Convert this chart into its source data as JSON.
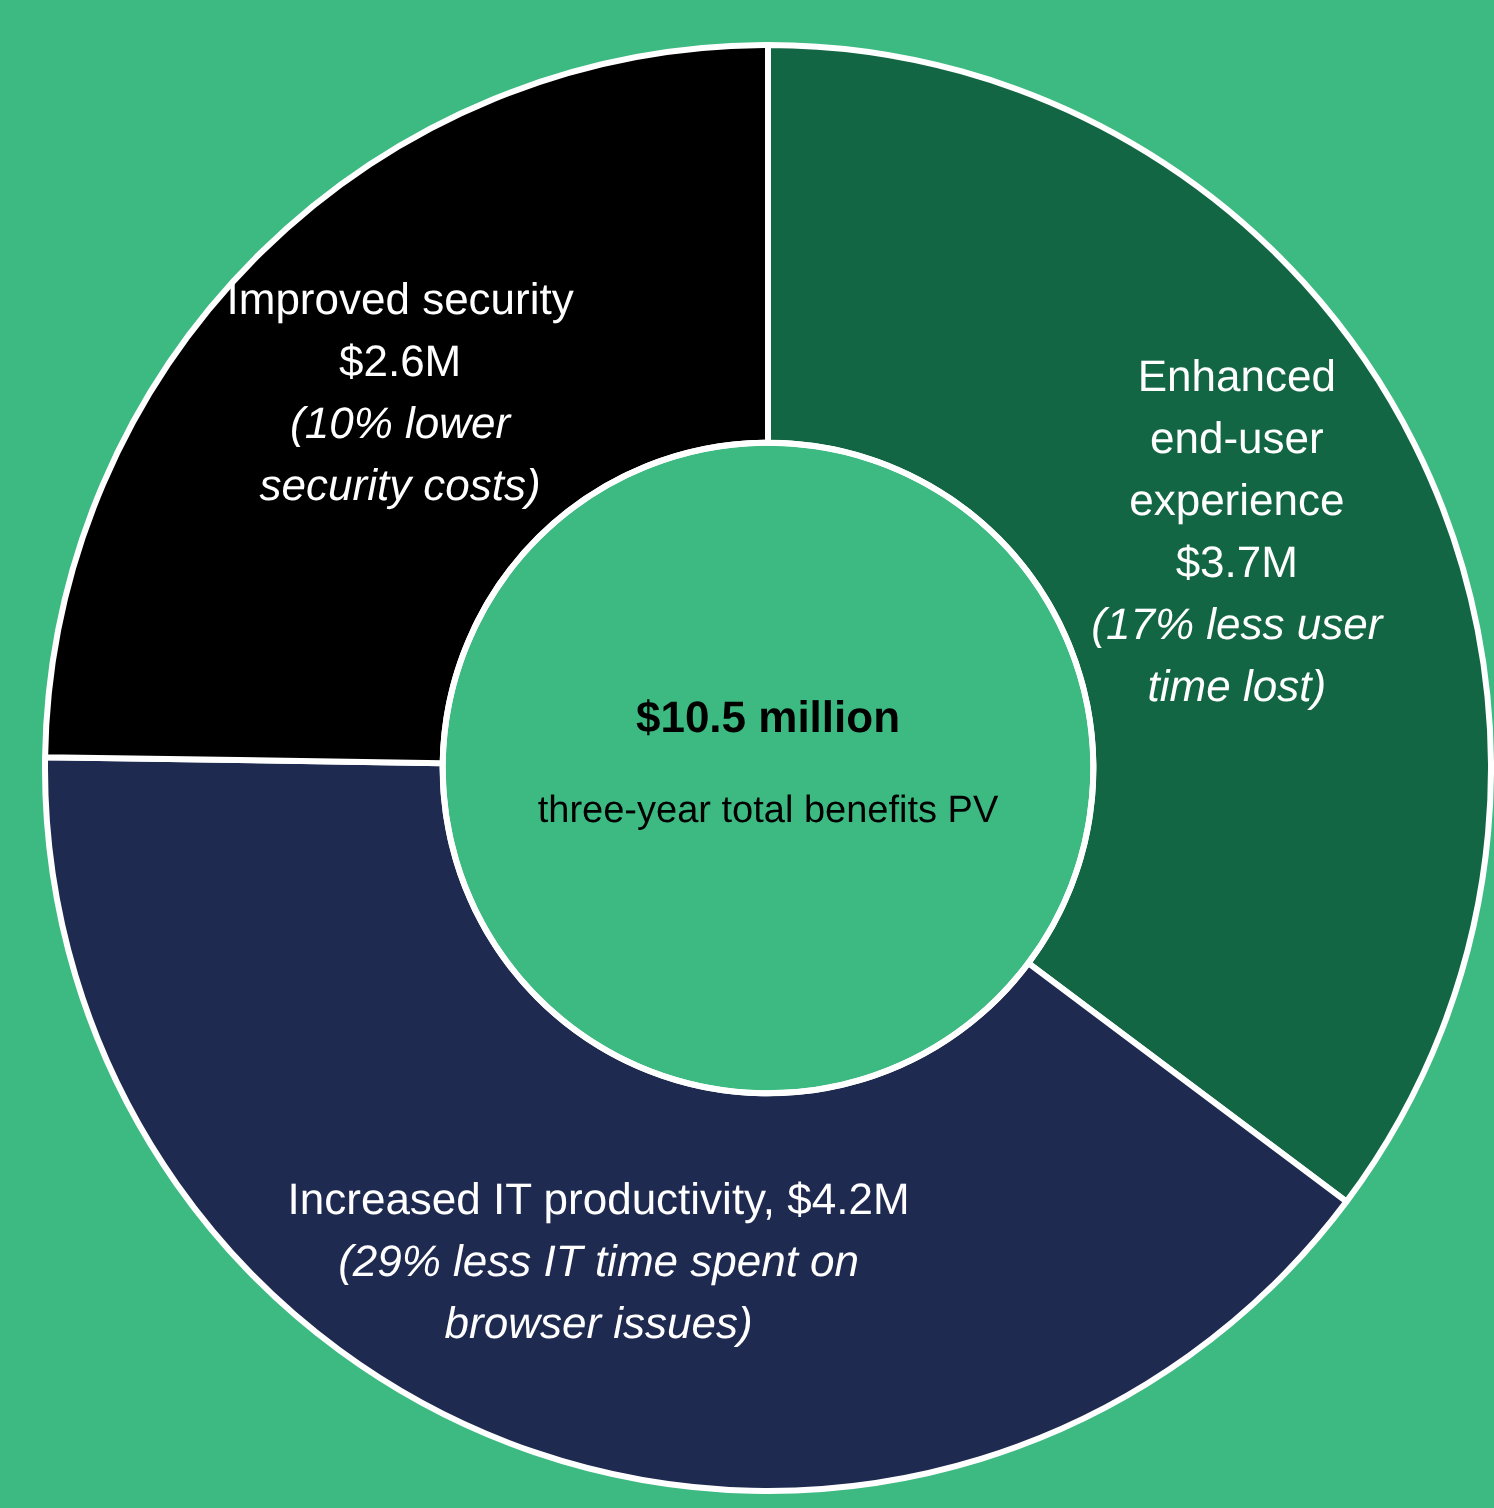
{
  "chart_data": {
    "type": "donut",
    "title": "$10.5 million",
    "subtitle": "three-year total benefits PV",
    "categories": [
      "Enhanced end-user experience",
      "Increased IT productivity",
      "Improved security"
    ],
    "values": [
      3.7,
      4.2,
      2.6
    ],
    "value_labels": [
      "$3.7M",
      "$4.2M",
      "$2.6M"
    ],
    "colors": [
      "#136644",
      "#1f2a50",
      "#000000"
    ],
    "annotations": [
      "(17% less user time lost)",
      "(29% less IT time spent on browser issues)",
      "(10% lower security costs)"
    ],
    "legend": false
  }
}
